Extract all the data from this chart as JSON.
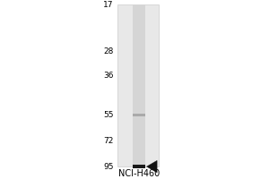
{
  "title": "NCI-H460",
  "mw_markers": [
    95,
    72,
    55,
    36,
    28,
    17
  ],
  "band_main_mw": 95,
  "band_faint_mw": 55,
  "arrow_mw": 95,
  "fig_bg": "#ffffff",
  "outer_bg": "#b8b8b8",
  "gel_panel_bg": "#f0f0f0",
  "lane_bg": "#e0e0e0",
  "band_dark_color": "#1a1a1a",
  "band_faint_color": "#aaaaaa",
  "arrow_color": "#111111"
}
